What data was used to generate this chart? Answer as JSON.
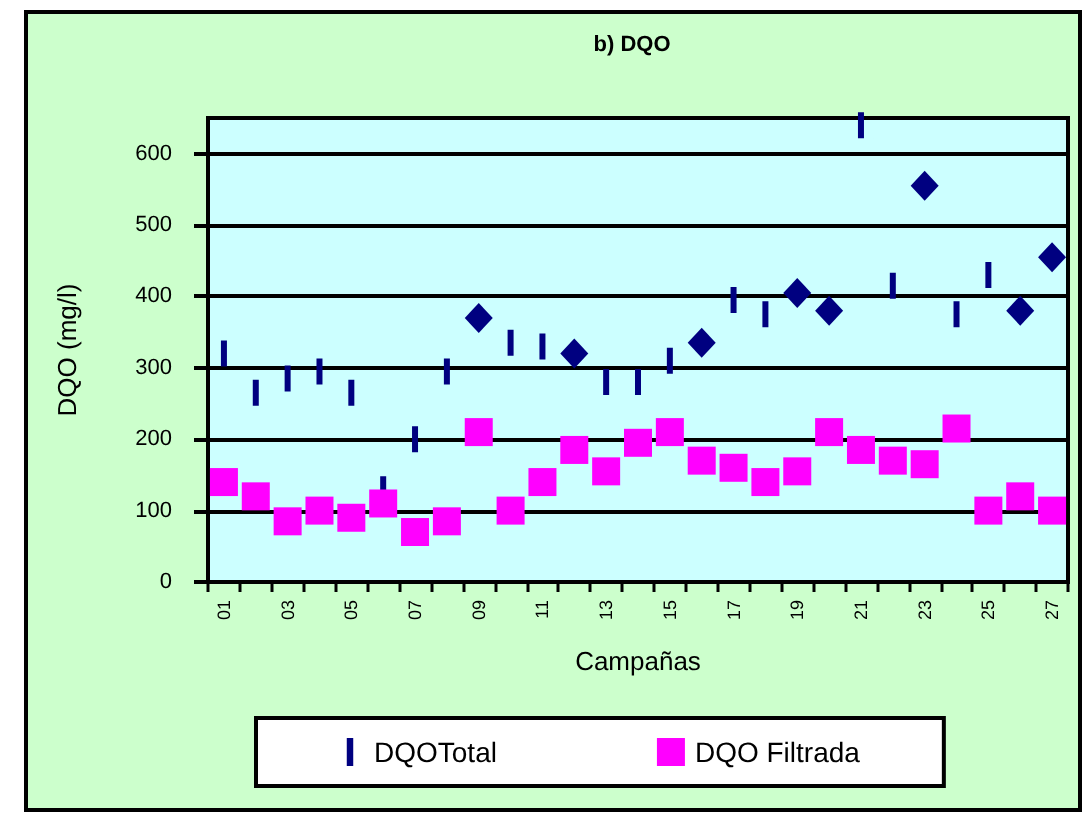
{
  "chart_data": {
    "type": "scatter",
    "title": "b) DQO",
    "xlabel": "Campañas",
    "ylabel": "DQO (mg/l)",
    "categories": [
      "01",
      null,
      "03",
      null,
      "05",
      null,
      "07",
      null,
      "09",
      null,
      "11",
      null,
      "13",
      null,
      "15",
      null,
      "17",
      null,
      "19",
      null,
      "21",
      null,
      "23",
      null,
      "25",
      null,
      "27"
    ],
    "series": [
      {
        "name": "DQOTotal",
        "color": "#000080",
        "values": [
          320,
          265,
          285,
          295,
          265,
          130,
          200,
          295,
          null,
          335,
          330,
          null,
          280,
          280,
          310,
          null,
          395,
          375,
          null,
          null,
          640,
          415,
          null,
          375,
          430,
          null,
          null
        ]
      },
      {
        "color": "#000080",
        "marker": "diamond",
        "values": [
          null,
          null,
          null,
          null,
          null,
          null,
          null,
          null,
          370,
          null,
          null,
          320,
          null,
          null,
          null,
          335,
          null,
          null,
          405,
          380,
          null,
          null,
          555,
          null,
          null,
          380,
          455
        ]
      },
      {
        "name": "DQO Filtrada",
        "color": "#ff00ff",
        "marker": "square",
        "values": [
          140,
          120,
          85,
          100,
          90,
          110,
          70,
          85,
          210,
          100,
          140,
          185,
          155,
          195,
          210,
          170,
          160,
          140,
          155,
          210,
          185,
          170,
          165,
          215,
          100,
          120,
          100
        ]
      }
    ],
    "ylim": [
      0,
      650
    ],
    "yticks": [
      0,
      100,
      200,
      300,
      400,
      500,
      600
    ],
    "grid": "y",
    "legend": "bottom"
  }
}
